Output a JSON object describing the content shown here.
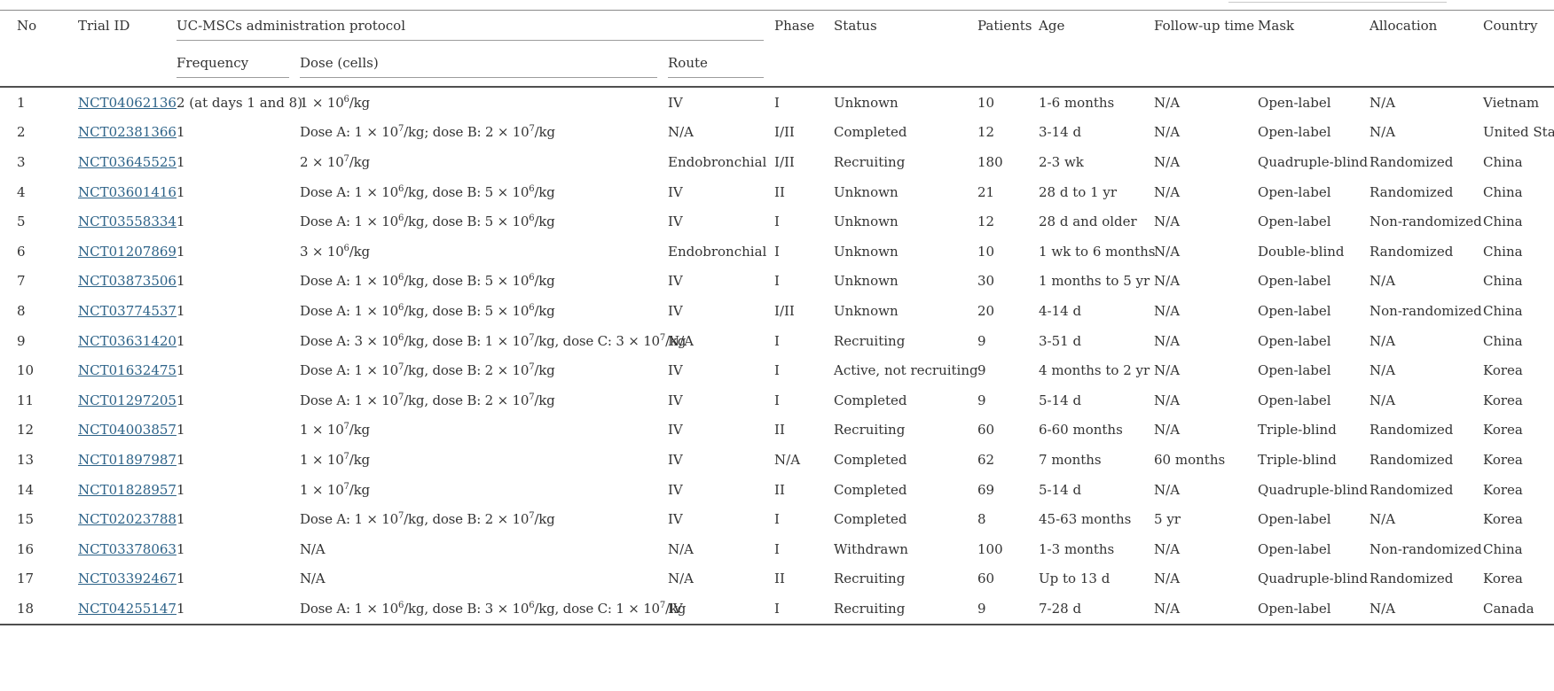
{
  "colors": {
    "link_blue": "#2c6288",
    "text": "#333333",
    "rule_dark": "#4f4f4f",
    "rule_light": "#9c9c9c"
  },
  "table": {
    "group_header": "UC-MSCs administration protocol",
    "headers": {
      "no": "No",
      "trial_id": "Trial ID",
      "frequency": "Frequency",
      "dose": "Dose (cells)",
      "route": "Route",
      "phase": "Phase",
      "status": "Status",
      "patients": "Patients",
      "age": "Age",
      "follow_up": "Follow-up time",
      "mask": "Mask",
      "allocation": "Allocation",
      "country": "Country"
    },
    "rows": [
      {
        "no": "1",
        "trial_id": "NCT04062136",
        "frequency": "2 (at days 1 and 8)",
        "dose": "1 × 10^6/kg",
        "route": "IV",
        "phase": "I",
        "status": "Unknown",
        "patients": "10",
        "age": "1-6 months",
        "follow_up": "N/A",
        "mask": "Open-label",
        "allocation": "N/A",
        "country": "Vietnam"
      },
      {
        "no": "2",
        "trial_id": "NCT02381366",
        "frequency": "1",
        "dose": "Dose A: 1 × 10^7/kg; dose B: 2 × 10^7/kg",
        "route": "N/A",
        "phase": "I/II",
        "status": "Completed",
        "patients": "12",
        "age": "3-14 d",
        "follow_up": "N/A",
        "mask": "Open-label",
        "allocation": "N/A",
        "country": "United States"
      },
      {
        "no": "3",
        "trial_id": "NCT03645525",
        "frequency": "1",
        "dose": "2 × 10^7/kg",
        "route": "Endobronchial",
        "phase": "I/II",
        "status": "Recruiting",
        "patients": "180",
        "age": "2-3 wk",
        "follow_up": "N/A",
        "mask": "Quadruple-blind",
        "allocation": "Randomized",
        "country": "China"
      },
      {
        "no": "4",
        "trial_id": "NCT03601416",
        "frequency": "1",
        "dose": "Dose A: 1 × 10^6/kg, dose B: 5 × 10^6/kg",
        "route": "IV",
        "phase": "II",
        "status": "Unknown",
        "patients": "21",
        "age": "28 d to 1 yr",
        "follow_up": "N/A",
        "mask": "Open-label",
        "allocation": "Randomized",
        "country": "China"
      },
      {
        "no": "5",
        "trial_id": "NCT03558334",
        "frequency": "1",
        "dose": "Dose A: 1 × 10^6/kg, dose B: 5 × 10^6/kg",
        "route": "IV",
        "phase": "I",
        "status": "Unknown",
        "patients": "12",
        "age": "28 d and older",
        "follow_up": "N/A",
        "mask": "Open-label",
        "allocation": "Non-randomized",
        "country": "China"
      },
      {
        "no": "6",
        "trial_id": "NCT01207869",
        "frequency": "1",
        "dose": "3 × 10^6/kg",
        "route": "Endobronchial",
        "phase": "I",
        "status": "Unknown",
        "patients": "10",
        "age": "1 wk to 6 months",
        "follow_up": "N/A",
        "mask": "Double-blind",
        "allocation": "Randomized",
        "country": "China"
      },
      {
        "no": "7",
        "trial_id": "NCT03873506",
        "frequency": "1",
        "dose": "Dose A: 1 × 10^6/kg, dose B: 5 × 10^6/kg",
        "route": "IV",
        "phase": "I",
        "status": "Unknown",
        "patients": "30",
        "age": "1 months to 5 yr",
        "follow_up": "N/A",
        "mask": "Open-label",
        "allocation": "N/A",
        "country": "China"
      },
      {
        "no": "8",
        "trial_id": "NCT03774537",
        "frequency": "1",
        "dose": "Dose A: 1 × 10^6/kg, dose B: 5 × 10^6/kg",
        "route": "IV",
        "phase": "I/II",
        "status": "Unknown",
        "patients": "20",
        "age": "4-14 d",
        "follow_up": "N/A",
        "mask": "Open-label",
        "allocation": "Non-randomized",
        "country": "China"
      },
      {
        "no": "9",
        "trial_id": "NCT03631420",
        "frequency": "1",
        "dose": "Dose A: 3 × 10^6/kg, dose B: 1 × 10^7/kg, dose C: 3 × 10^7/kg",
        "route": "N/A",
        "phase": "I",
        "status": "Recruiting",
        "patients": "9",
        "age": "3-51 d",
        "follow_up": "N/A",
        "mask": "Open-label",
        "allocation": "N/A",
        "country": "China"
      },
      {
        "no": "10",
        "trial_id": "NCT01632475",
        "frequency": "1",
        "dose": "Dose A: 1 × 10^7/kg, dose B: 2 × 10^7/kg",
        "route": "IV",
        "phase": "I",
        "status": "Active, not recruiting",
        "patients": "9",
        "age": "4 months to 2 yr",
        "follow_up": "N/A",
        "mask": "Open-label",
        "allocation": "N/A",
        "country": "Korea"
      },
      {
        "no": "11",
        "trial_id": "NCT01297205",
        "frequency": "1",
        "dose": "Dose A: 1 × 10^7/kg, dose B: 2 × 10^7/kg",
        "route": "IV",
        "phase": "I",
        "status": "Completed",
        "patients": "9",
        "age": "5-14 d",
        "follow_up": "N/A",
        "mask": "Open-label",
        "allocation": "N/A",
        "country": "Korea"
      },
      {
        "no": "12",
        "trial_id": "NCT04003857",
        "frequency": "1",
        "dose": "1 × 10^7/kg",
        "route": "IV",
        "phase": "II",
        "status": "Recruiting",
        "patients": "60",
        "age": "6-60 months",
        "follow_up": "N/A",
        "mask": "Triple-blind",
        "allocation": "Randomized",
        "country": "Korea"
      },
      {
        "no": "13",
        "trial_id": "NCT01897987",
        "frequency": "1",
        "dose": "1 × 10^7/kg",
        "route": "IV",
        "phase": "N/A",
        "status": "Completed",
        "patients": "62",
        "age": "7 months",
        "follow_up": "60 months",
        "mask": "Triple-blind",
        "allocation": "Randomized",
        "country": "Korea"
      },
      {
        "no": "14",
        "trial_id": "NCT01828957",
        "frequency": "1",
        "dose": "1 × 10^7/kg",
        "route": "IV",
        "phase": "II",
        "status": "Completed",
        "patients": "69",
        "age": "5-14 d",
        "follow_up": "N/A",
        "mask": "Quadruple-blind",
        "allocation": "Randomized",
        "country": "Korea"
      },
      {
        "no": "15",
        "trial_id": "NCT02023788",
        "frequency": "1",
        "dose": "Dose A: 1 × 10^7/kg, dose B: 2 × 10^7/kg",
        "route": "IV",
        "phase": "I",
        "status": "Completed",
        "patients": "8",
        "age": "45-63 months",
        "follow_up": "5 yr",
        "mask": "Open-label",
        "allocation": "N/A",
        "country": "Korea"
      },
      {
        "no": "16",
        "trial_id": "NCT03378063",
        "frequency": "1",
        "dose": "N/A",
        "route": "N/A",
        "phase": "I",
        "status": "Withdrawn",
        "patients": "100",
        "age": "1-3 months",
        "follow_up": "N/A",
        "mask": "Open-label",
        "allocation": "Non-randomized",
        "country": "China"
      },
      {
        "no": "17",
        "trial_id": "NCT03392467",
        "frequency": "1",
        "dose": "N/A",
        "route": "N/A",
        "phase": "II",
        "status": "Recruiting",
        "patients": "60",
        "age": "Up to 13 d",
        "follow_up": "N/A",
        "mask": "Quadruple-blind",
        "allocation": "Randomized",
        "country": "Korea"
      },
      {
        "no": "18",
        "trial_id": "NCT04255147",
        "frequency": "1",
        "dose": "Dose A: 1 × 10^6/kg, dose B: 3 × 10^6/kg, dose C: 1 × 10^7/kg",
        "route": "IV",
        "phase": "I",
        "status": "Recruiting",
        "patients": "9",
        "age": "7-28 d",
        "follow_up": "N/A",
        "mask": "Open-label",
        "allocation": "N/A",
        "country": "Canada"
      }
    ]
  }
}
